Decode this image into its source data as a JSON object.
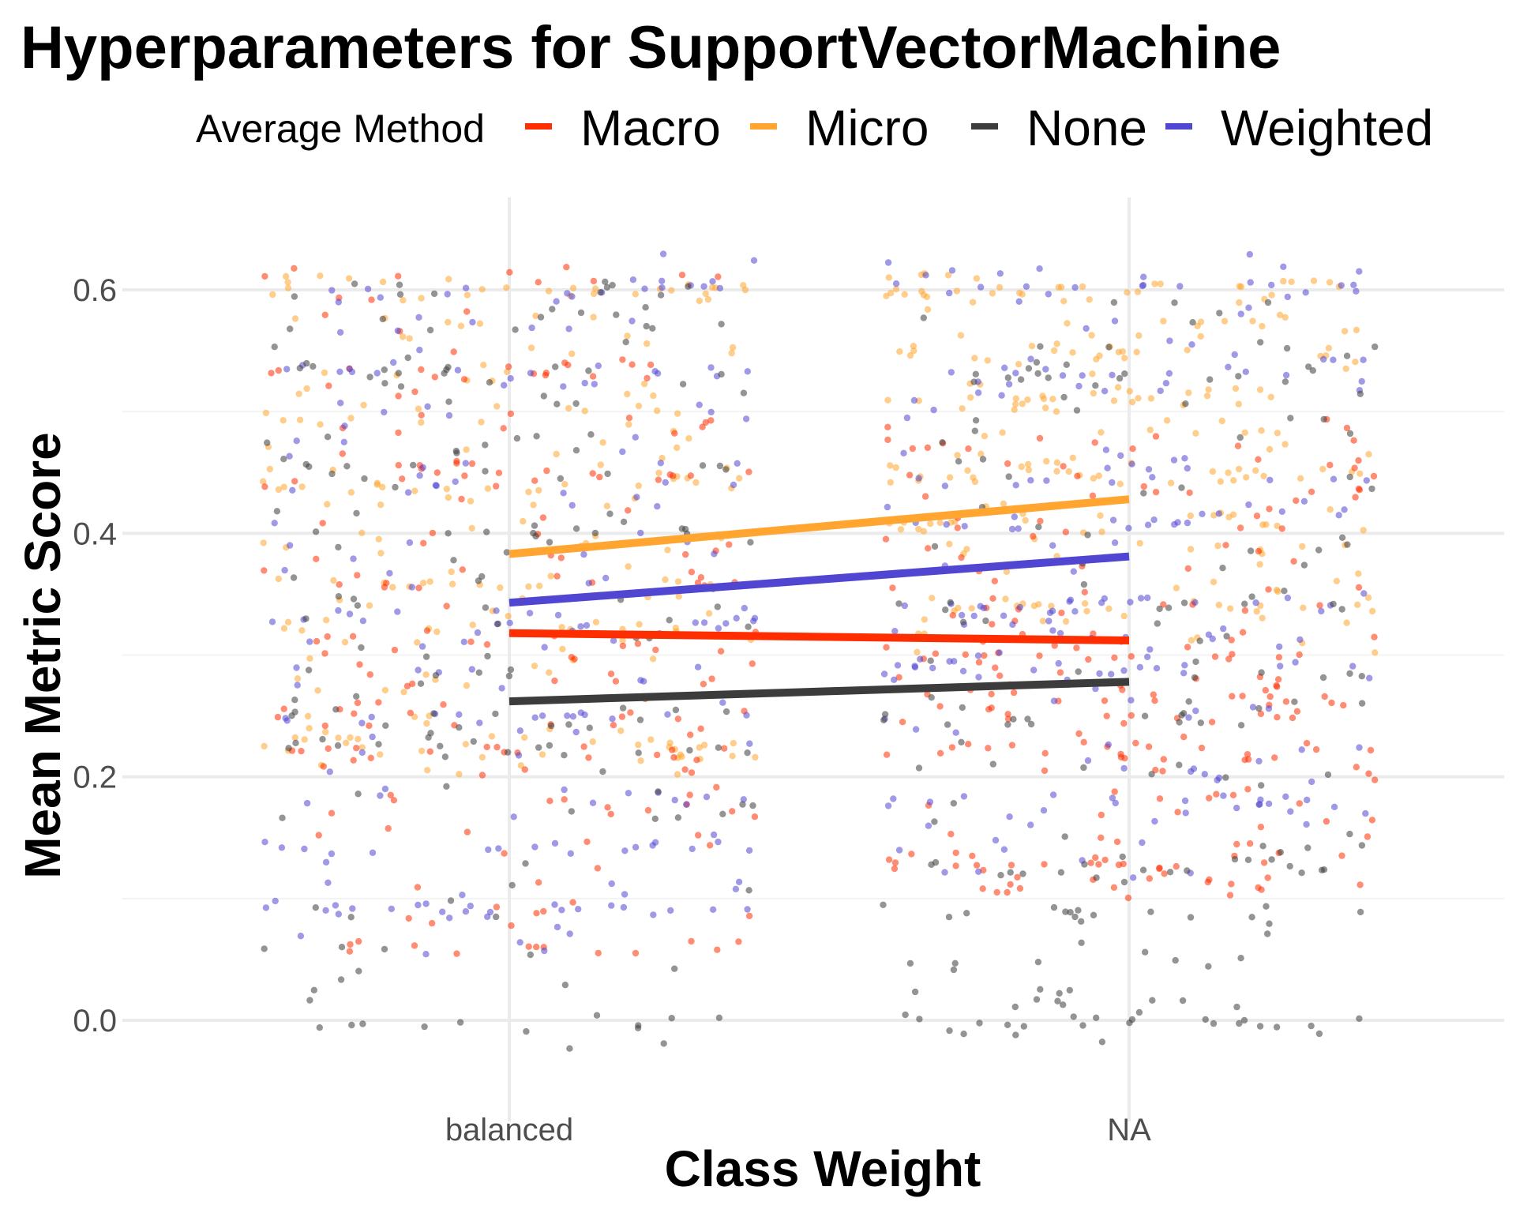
{
  "chart_data": {
    "type": "scatter",
    "title": "Hyperparameters for SupportVectorMachine",
    "xlabel": "Class Weight",
    "ylabel": "Mean Metric Score",
    "categories": [
      "balanced",
      "NA"
    ],
    "ylim": [
      -0.06,
      0.66
    ],
    "yticks": [
      0.0,
      0.2,
      0.4,
      0.6
    ],
    "ytick_labels": [
      "0.0",
      "0.2",
      "0.4",
      "0.6"
    ],
    "grid": true,
    "legend": {
      "title": "Average Method",
      "placement": "top"
    },
    "series": [
      {
        "name": "Macro",
        "color": "#ff2e00",
        "trend": [
          0.318,
          0.312
        ],
        "levels": [
          [
            [
              0.06,
              0.22,
              0.25,
              0.3,
              0.36,
              0.45,
              0.53
            ],
            0.06,
            0.62,
            210
          ],
          [
            [
              0.11,
              0.13,
              0.22,
              0.25,
              0.27,
              0.3
            ],
            0.1,
            0.5,
            230
          ]
        ]
      },
      {
        "name": "Micro",
        "color": "#ffa530",
        "trend": [
          0.383,
          0.428
        ],
        "levels": [
          [
            [
              0.22,
              0.23,
              0.32,
              0.36,
              0.44,
              0.5,
              0.6
            ],
            0.2,
            0.62,
            230
          ],
          [
            [
              0.34,
              0.41,
              0.45,
              0.51,
              0.55,
              0.6
            ],
            0.3,
            0.62,
            240
          ]
        ]
      },
      {
        "name": "None",
        "color": "#3c3c3c",
        "trend": [
          0.262,
          0.278
        ],
        "levels": [
          [
            [
              0.0,
              0.22,
              0.25,
              0.4,
              0.45,
              0.53,
              0.6
            ],
            -0.03,
            0.6,
            190
          ],
          [
            [
              0.0,
              0.02,
              0.09,
              0.13,
              0.25,
              0.34,
              0.53
            ],
            -0.02,
            0.6,
            200
          ]
        ]
      },
      {
        "name": "Weighted",
        "color": "#5046d2",
        "trend": [
          0.343,
          0.381
        ],
        "levels": [
          [
            [
              0.09,
              0.14,
              0.25,
              0.33,
              0.44,
              0.53,
              0.6
            ],
            0.05,
            0.63,
            220
          ],
          [
            [
              0.18,
              0.29,
              0.34,
              0.41,
              0.53,
              0.6
            ],
            0.11,
            0.63,
            230
          ]
        ]
      }
    ]
  }
}
